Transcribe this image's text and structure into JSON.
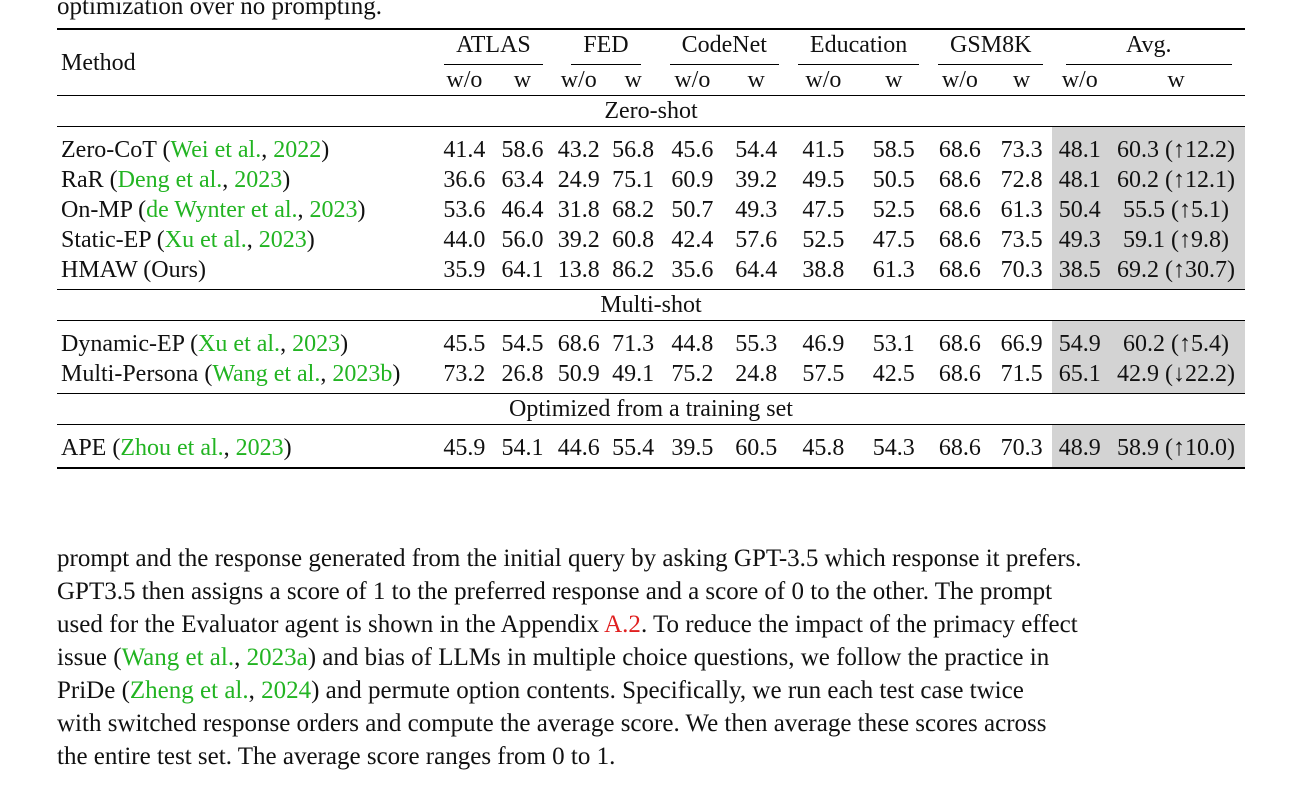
{
  "caption_tail": "optimization over no prompting.",
  "table": {
    "method_header": "Method",
    "groups": [
      "ATLAS",
      "FED",
      "CodeNet",
      "Education",
      "GSM8K",
      "Avg."
    ],
    "sub_wo": "w/o",
    "sub_w": "w",
    "sections": [
      {
        "title": "Zero-shot",
        "rows": [
          {
            "name": "Zero-CoT (",
            "cite_author": "Wei et al.",
            "sep": ", ",
            "cite_year": "2022",
            "close": ")",
            "vals": [
              "41.4",
              "58.6",
              "43.2",
              "56.8",
              "45.6",
              "54.4",
              "41.5",
              "58.5",
              "68.6",
              "73.3"
            ],
            "avg_wo": "48.1",
            "avg_w": "60.3 (↑12.2)"
          },
          {
            "name": "RaR (",
            "cite_author": "Deng et al.",
            "sep": ", ",
            "cite_year": "2023",
            "close": ")",
            "vals": [
              "36.6",
              "63.4",
              "24.9",
              "75.1",
              "60.9",
              "39.2",
              "49.5",
              "50.5",
              "68.6",
              "72.8"
            ],
            "avg_wo": "48.1",
            "avg_w": "60.2 (↑12.1)"
          },
          {
            "name": "On-MP (",
            "cite_author": "de Wynter et al.",
            "sep": ", ",
            "cite_year": "2023",
            "close": ")",
            "vals": [
              "53.6",
              "46.4",
              "31.8",
              "68.2",
              "50.7",
              "49.3",
              "47.5",
              "52.5",
              "68.6",
              "61.3"
            ],
            "avg_wo": "50.4",
            "avg_w": "55.5 (↑5.1)"
          },
          {
            "name": "Static-EP (",
            "cite_author": "Xu et al.",
            "sep": ", ",
            "cite_year": "2023",
            "close": ")",
            "vals": [
              "44.0",
              "56.0",
              "39.2",
              "60.8",
              "42.4",
              "57.6",
              "52.5",
              "47.5",
              "68.6",
              "73.5"
            ],
            "avg_wo": "49.3",
            "avg_w": "59.1 (↑9.8)"
          },
          {
            "name": "HMAW (Ours)",
            "cite_author": "",
            "sep": "",
            "cite_year": "",
            "close": "",
            "vals": [
              "35.9",
              "64.1",
              "13.8",
              "86.2",
              "35.6",
              "64.4",
              "38.8",
              "61.3",
              "68.6",
              "70.3"
            ],
            "avg_wo": "38.5",
            "avg_w": "69.2 (↑30.7)"
          }
        ]
      },
      {
        "title": "Multi-shot",
        "rows": [
          {
            "name": "Dynamic-EP (",
            "cite_author": "Xu et al.",
            "sep": ", ",
            "cite_year": "2023",
            "close": ")",
            "vals": [
              "45.5",
              "54.5",
              "68.6",
              "71.3",
              "44.8",
              "55.3",
              "46.9",
              "53.1",
              "68.6",
              "66.9"
            ],
            "avg_wo": "54.9",
            "avg_w": "60.2 (↑5.4)"
          },
          {
            "name": "Multi-Persona (",
            "cite_author": "Wang et al.",
            "sep": ", ",
            "cite_year": "2023b",
            "close": ")",
            "vals": [
              "73.2",
              "26.8",
              "50.9",
              "49.1",
              "75.2",
              "24.8",
              "57.5",
              "42.5",
              "68.6",
              "71.5"
            ],
            "avg_wo": "65.1",
            "avg_w": "42.9 (↓22.2)"
          }
        ]
      },
      {
        "title": "Optimized from a training set",
        "rows": [
          {
            "name": "APE (",
            "cite_author": "Zhou et al.",
            "sep": ", ",
            "cite_year": "2023",
            "close": ")",
            "vals": [
              "45.9",
              "54.1",
              "44.6",
              "55.4",
              "39.5",
              "60.5",
              "45.8",
              "54.3",
              "68.6",
              "70.3"
            ],
            "avg_wo": "48.9",
            "avg_w": "58.9 (↑10.0)"
          }
        ]
      }
    ]
  },
  "body": {
    "l1": "prompt and the response generated from the initial query by asking GPT-3.5 which response it prefers.",
    "l2": "GPT3.5 then assigns a score of 1 to the preferred response and a score of 0 to the other. The prompt",
    "l3a": "used for the Evaluator agent is shown in the Appendix ",
    "l3ref": "A.2",
    "l3b": ". To reduce the impact of the primacy effect",
    "l4a": "issue (",
    "l4cite_author": "Wang et al.",
    "l4sep": ", ",
    "l4cite_year": "2023a",
    "l4b": ") and bias of LLMs in multiple choice questions, we follow the practice in",
    "l5a": "PriDe (",
    "l5cite_author": "Zheng et al.",
    "l5sep": ", ",
    "l5cite_year": "2024",
    "l5b": ") and permute option contents. Specifically, we run each test case twice",
    "l6": "with switched response orders and compute the average score. We then average these scores across",
    "l7": "the entire test set. The average score ranges from 0 to 1."
  }
}
